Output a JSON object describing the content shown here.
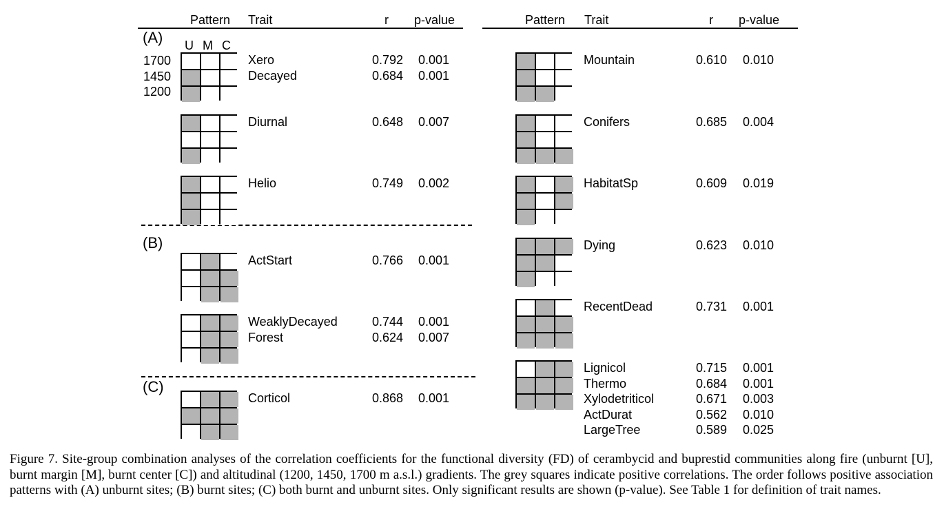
{
  "header": {
    "pattern": "Pattern",
    "trait": "Trait",
    "r": "r",
    "p": "p-value"
  },
  "sections": {
    "a": "(A)",
    "b": "(B)",
    "c": "(C)"
  },
  "umc": {
    "u": "U",
    "m": "M",
    "c": "C"
  },
  "altitudes": [
    "1700",
    "1450",
    "1200"
  ],
  "left": [
    {
      "id": "g1",
      "cells": [
        0,
        0,
        0,
        1,
        0,
        0,
        1,
        0,
        0
      ],
      "rows": [
        {
          "trait": "Xero",
          "r": "0.792",
          "p": "0.001"
        },
        {
          "trait": "Decayed",
          "r": "0.684",
          "p": "0.001"
        }
      ]
    },
    {
      "id": "g2",
      "cells": [
        1,
        0,
        0,
        0,
        0,
        0,
        1,
        0,
        0
      ],
      "rows": [
        {
          "trait": "Diurnal",
          "r": "0.648",
          "p": "0.007"
        }
      ]
    },
    {
      "id": "g3",
      "cells": [
        1,
        0,
        0,
        1,
        0,
        0,
        1,
        0,
        0
      ],
      "rows": [
        {
          "trait": "Helio",
          "r": "0.749",
          "p": "0.002"
        }
      ]
    },
    {
      "id": "g4",
      "cells": [
        0,
        1,
        0,
        0,
        1,
        1,
        0,
        1,
        1
      ],
      "rows": [
        {
          "trait": "ActStart",
          "r": "0.766",
          "p": "0.001"
        }
      ]
    },
    {
      "id": "g5",
      "cells": [
        0,
        1,
        1,
        0,
        1,
        1,
        0,
        1,
        1
      ],
      "rows": [
        {
          "trait": "WeaklyDecayed",
          "r": "0.744",
          "p": "0.001"
        },
        {
          "trait": "Forest",
          "r": "0.624",
          "p": "0.007"
        }
      ]
    },
    {
      "id": "g6",
      "cells": [
        0,
        1,
        1,
        1,
        1,
        1,
        0,
        1,
        1
      ],
      "rows": [
        {
          "trait": "Corticol",
          "r": "0.868",
          "p": "0.001"
        }
      ]
    }
  ],
  "right": [
    {
      "id": "r1",
      "cells": [
        1,
        0,
        0,
        1,
        0,
        0,
        1,
        1,
        0
      ],
      "rows": [
        {
          "trait": "Mountain",
          "r": "0.610",
          "p": "0.010"
        }
      ]
    },
    {
      "id": "r2",
      "cells": [
        1,
        0,
        0,
        1,
        0,
        0,
        1,
        1,
        1
      ],
      "rows": [
        {
          "trait": "Conifers",
          "r": "0.685",
          "p": "0.004"
        }
      ]
    },
    {
      "id": "r3",
      "cells": [
        1,
        0,
        1,
        1,
        0,
        1,
        1,
        0,
        0
      ],
      "rows": [
        {
          "trait": "HabitatSp",
          "r": "0.609",
          "p": "0.019"
        }
      ]
    },
    {
      "id": "r4",
      "cells": [
        1,
        1,
        1,
        1,
        1,
        0,
        1,
        0,
        0
      ],
      "rows": [
        {
          "trait": "Dying",
          "r": "0.623",
          "p": "0.010"
        }
      ]
    },
    {
      "id": "r5",
      "cells": [
        0,
        1,
        0,
        1,
        1,
        1,
        1,
        1,
        1
      ],
      "rows": [
        {
          "trait": "RecentDead",
          "r": "0.731",
          "p": "0.001"
        }
      ]
    },
    {
      "id": "r6",
      "cells": [
        0,
        1,
        1,
        1,
        1,
        1,
        1,
        1,
        1
      ],
      "rows": [
        {
          "trait": "Lignicol",
          "r": "0.715",
          "p": "0.001"
        },
        {
          "trait": "Thermo",
          "r": "0.684",
          "p": "0.001"
        },
        {
          "trait": "Xylodetriticol",
          "r": "0.671",
          "p": "0.003"
        },
        {
          "trait": "ActDurat",
          "r": "0.562",
          "p": "0.010"
        },
        {
          "trait": "LargeTree",
          "r": "0.589",
          "p": "0.025"
        }
      ]
    }
  ],
  "caption": "Figure 7. Site-group combination analyses of the correlation coefficients for the functional diversity (FD) of cerambycid and buprestid communities along fire (unburnt [U], burnt margin [M], burnt center [C]) and altitudinal (1200, 1450, 1700 m a.s.l.) gradients. The grey squares indicate positive correlations. The order follows positive association patterns with (A) unburnt sites; (B) burnt sites; (C) both burnt and unburnt sites. Only significant results are shown (p-value). See Table 1 for definition of trait names."
}
